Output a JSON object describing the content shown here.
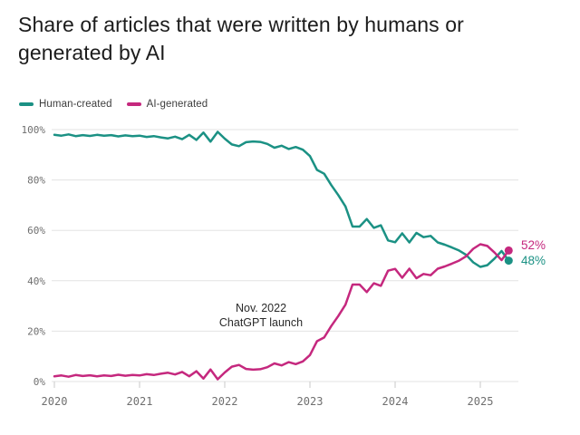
{
  "header": {
    "title_line1": "Share of articles that were written by humans or",
    "title_line2": "generated by AI"
  },
  "chart_data": {
    "type": "line",
    "title": "Share of articles that were written by humans or generated by AI",
    "x_range": {
      "start": "2020-01",
      "end": "2025-05",
      "interval": "monthly"
    },
    "x_tick_labels": [
      "2020",
      "2021",
      "2022",
      "2023",
      "2024",
      "2025"
    ],
    "y_ticks": [
      0,
      20,
      40,
      60,
      80,
      100
    ],
    "y_tick_labels": [
      "0%",
      "20%",
      "40%",
      "60%",
      "80%",
      "100%"
    ],
    "ylim": [
      0,
      100
    ],
    "grid": "horizontal",
    "legend_position": "top-left",
    "series": [
      {
        "name": "Human-created",
        "color": "#1b9184",
        "values": [
          97.9,
          97.6,
          98.1,
          97.4,
          97.8,
          97.5,
          97.9,
          97.6,
          97.8,
          97.3,
          97.7,
          97.4,
          97.6,
          97.1,
          97.4,
          96.9,
          96.5,
          97.2,
          96.2,
          97.9,
          95.9,
          98.8,
          95.2,
          99.1,
          96.4,
          94.1,
          93.4,
          95.0,
          95.3,
          95.1,
          94.3,
          92.8,
          93.6,
          92.3,
          93.1,
          92.0,
          89.5,
          84.0,
          82.5,
          78.0,
          74.0,
          69.5,
          61.5,
          61.5,
          64.5,
          61.0,
          62.0,
          56.0,
          55.3,
          58.8,
          55.2,
          59.0,
          57.3,
          57.8,
          55.2,
          54.3,
          53.2,
          52.0,
          50.3,
          47.3,
          45.5,
          46.2,
          48.8,
          51.8,
          48.0
        ]
      },
      {
        "name": "AI-generated",
        "color": "#c5287e",
        "values": [
          2.1,
          2.4,
          1.9,
          2.6,
          2.2,
          2.5,
          2.1,
          2.4,
          2.2,
          2.7,
          2.3,
          2.6,
          2.4,
          2.9,
          2.6,
          3.1,
          3.5,
          2.8,
          3.8,
          2.1,
          4.1,
          1.2,
          4.8,
          0.9,
          3.6,
          5.9,
          6.6,
          5.0,
          4.7,
          4.9,
          5.7,
          7.2,
          6.4,
          7.7,
          6.9,
          8.0,
          10.5,
          16.0,
          17.5,
          22.0,
          26.0,
          30.5,
          38.5,
          38.5,
          35.5,
          39.0,
          38.0,
          44.0,
          44.7,
          41.2,
          44.8,
          41.0,
          42.7,
          42.2,
          44.8,
          45.7,
          46.8,
          48.0,
          49.7,
          52.7,
          54.5,
          53.8,
          51.2,
          48.2,
          52.0
        ]
      }
    ],
    "annotation": {
      "line1": "Nov. 2022",
      "line2": "ChatGPT launch"
    },
    "end_labels": [
      {
        "series": "AI-generated",
        "text": "52%",
        "color": "#c5287e"
      },
      {
        "series": "Human-created",
        "text": "48%",
        "color": "#1b9184"
      }
    ]
  }
}
